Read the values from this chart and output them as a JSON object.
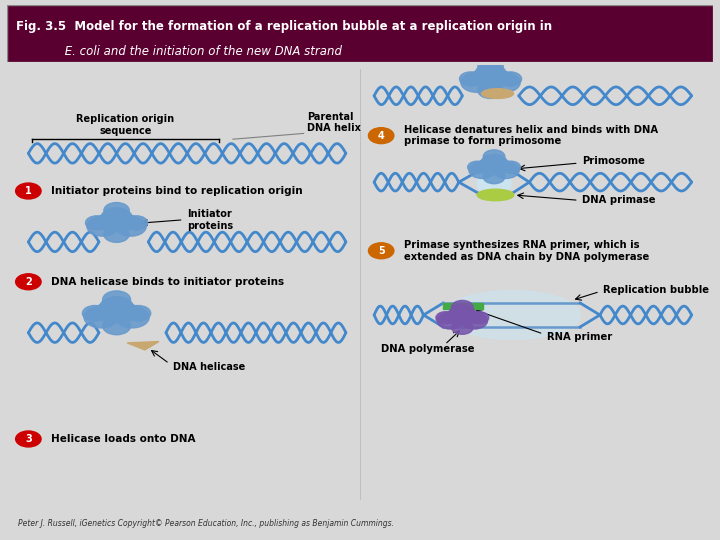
{
  "title_line1": "Fig. 3.5  Model for the formation of a replication bubble at a replication origin in",
  "title_line2": "             E. coli and the initiation of the new DNA strand",
  "title_bg_color": "#5a0030",
  "title_text_color": "#ffffff",
  "main_bg_color": "#d8d8d8",
  "body_bg_color": "#ebebeb",
  "step_circle_color_red": "#cc0000",
  "step_circle_color_orange": "#cc6600",
  "step_circle_text_color": "#ffffff",
  "dna_color": "#4488cc",
  "footer_text": "Peter J. Russell, iGenetics Copyright© Pearson Education, Inc., publishing as Benjamin Cummings."
}
